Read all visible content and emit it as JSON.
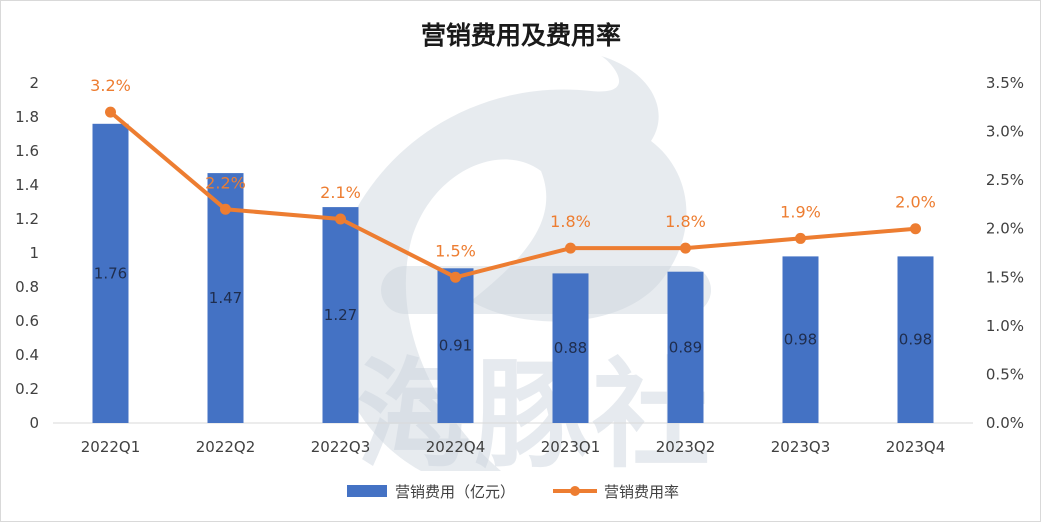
{
  "chart_data": {
    "type": "bar",
    "title": "营销费用及费用率",
    "categories": [
      "2022Q1",
      "2022Q2",
      "2022Q3",
      "2022Q4",
      "2023Q1",
      "2023Q2",
      "2023Q3",
      "2023Q4"
    ],
    "series": [
      {
        "name": "营销费用（亿元）",
        "type": "bar",
        "axis": "left",
        "color": "#4472c4",
        "values": [
          1.76,
          1.47,
          1.27,
          0.91,
          0.88,
          0.89,
          0.98,
          0.98
        ],
        "labels": [
          "1.76",
          "1.47",
          "1.27",
          "0.91",
          "0.88",
          "0.89",
          "0.98",
          "0.98"
        ]
      },
      {
        "name": "营销费用率",
        "type": "line",
        "axis": "right",
        "color": "#ed7d31",
        "values": [
          3.2,
          2.2,
          2.1,
          1.5,
          1.8,
          1.8,
          1.9,
          2.0
        ],
        "labels": [
          "3.2%",
          "2.2%",
          "2.1%",
          "1.5%",
          "1.8%",
          "1.8%",
          "1.9%",
          "2.0%"
        ]
      }
    ],
    "y_left": {
      "ylim": [
        0,
        2
      ],
      "ticks": [
        "0",
        "0.2",
        "0.4",
        "0.6",
        "0.8",
        "1",
        "1.2",
        "1.4",
        "1.6",
        "1.8",
        "2"
      ]
    },
    "y_right": {
      "ylim": [
        0,
        3.5
      ],
      "ticks": [
        "0.0%",
        "0.5%",
        "1.0%",
        "1.5%",
        "2.0%",
        "2.5%",
        "3.0%",
        "3.5%"
      ]
    },
    "grid": false,
    "legend_position": "bottom",
    "watermark": {
      "text": "海豚社",
      "type": "logo"
    }
  }
}
